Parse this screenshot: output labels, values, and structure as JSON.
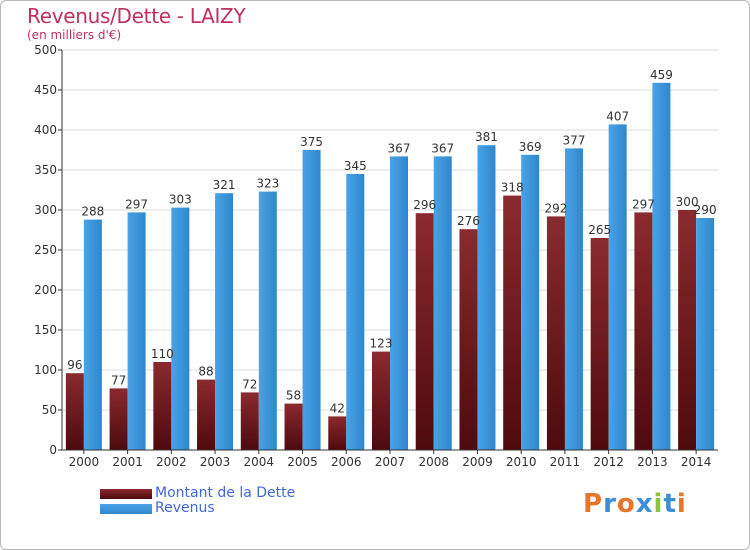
{
  "header": {
    "title": "Revenus/Dette - LAIZY",
    "subtitle": "(en milliers d'€)"
  },
  "legend": {
    "items": [
      {
        "label": "Montant de la Dette",
        "color": "#6e1a1e"
      },
      {
        "label": "Revenus",
        "color": "#3c96dc"
      }
    ]
  },
  "logo": {
    "text": "Proxiti",
    "colors": [
      "#e8752a",
      "#3a8fd6",
      "#e8752a",
      "#3a8fd6",
      "#8bc43f",
      "#3a8fd6",
      "#e8752a"
    ]
  },
  "colors": {
    "debt": "#6e1a1e",
    "revenue": "#3c96dc",
    "grid": "#dcdcdc",
    "axis": "#333333",
    "title": "#c0305a"
  },
  "chart_data": {
    "type": "bar",
    "categories": [
      "2000",
      "2001",
      "2002",
      "2003",
      "2004",
      "2005",
      "2006",
      "2007",
      "2008",
      "2009",
      "2010",
      "2011",
      "2012",
      "2013",
      "2014"
    ],
    "series": [
      {
        "name": "Montant de la Dette",
        "values": [
          96,
          77,
          110,
          88,
          72,
          58,
          42,
          123,
          296,
          276,
          318,
          292,
          265,
          297,
          300
        ]
      },
      {
        "name": "Revenus",
        "values": [
          288,
          297,
          303,
          321,
          323,
          375,
          345,
          367,
          367,
          381,
          369,
          377,
          407,
          459,
          290
        ]
      }
    ],
    "ylim": [
      0,
      500
    ],
    "yticks": [
      0,
      50,
      100,
      150,
      200,
      250,
      300,
      350,
      400,
      450,
      500
    ],
    "grid": true,
    "legend_position": "bottom-left"
  }
}
